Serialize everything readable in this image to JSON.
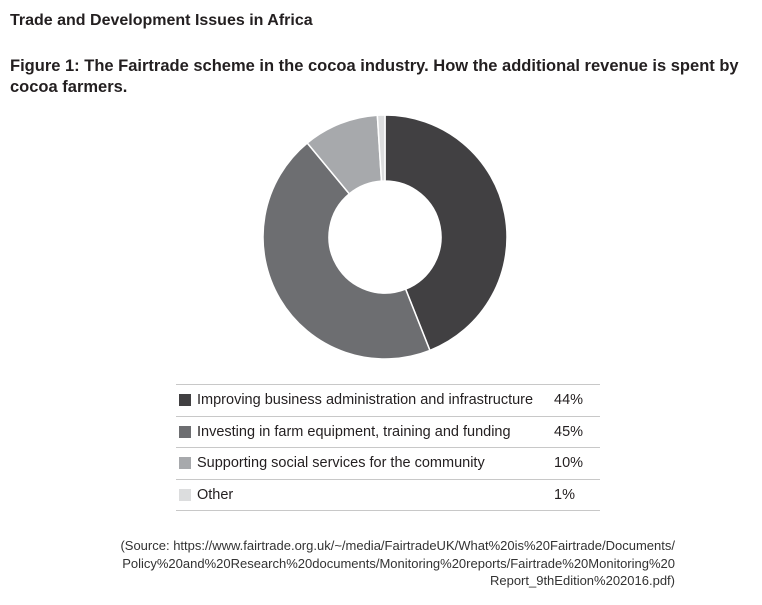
{
  "header": {
    "title": "Trade and Development Issues in Africa"
  },
  "figure": {
    "title": "Figure 1:  The Fairtrade scheme in the cocoa industry.  How the additional revenue is spent by cocoa farmers."
  },
  "colors": {
    "improving": "#414042",
    "investing": "#6d6e71",
    "supporting": "#a7a9ac",
    "other": "#dcddde"
  },
  "chart_data": {
    "type": "pie",
    "donut": true,
    "categories": [
      "Improving business administration and infrastructure",
      "Investing in farm equipment, training and funding",
      "Supporting social services for the community",
      "Other"
    ],
    "values": [
      44,
      45,
      10,
      1
    ],
    "value_labels": [
      "44%",
      "45%",
      "10%",
      "1%"
    ],
    "legend_position": "bottom"
  },
  "source": {
    "lines": [
      "(Source: https://www.fairtrade.org.uk/~/media/FairtradeUK/What%20is%20Fairtrade/Documents/",
      "Policy%20and%20Research%20documents/Monitoring%20reports/Fairtrade%20Monitoring%20",
      "Report_9thEdition%202016.pdf)"
    ]
  }
}
